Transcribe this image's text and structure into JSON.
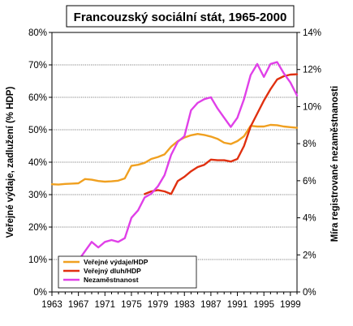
{
  "chart_data": {
    "type": "line",
    "title": "Francouzský sociální stát, 1965-2000",
    "ylabel": "Veřejné výdaje, zadlužení (% HDP)",
    "y2label": "Míra registrované nezaměstnanosti",
    "xlim": [
      1963,
      2000
    ],
    "ylim": [
      0,
      80
    ],
    "y2lim": [
      0,
      14
    ],
    "x_ticks": [
      1963,
      1967,
      1971,
      1975,
      1979,
      1983,
      1987,
      1991,
      1995,
      1999
    ],
    "y_ticks": [
      "0%",
      "10%",
      "20%",
      "30%",
      "40%",
      "50%",
      "60%",
      "70%",
      "80%"
    ],
    "y2_ticks": [
      "0%",
      "2%",
      "4%",
      "6%",
      "8%",
      "10%",
      "12%",
      "14%"
    ],
    "grid": "horizontal",
    "legend_position": "bottom-left",
    "series": [
      {
        "name": "Veřejné výdaje/HDP",
        "axis": "left",
        "color": "#f0a020",
        "x": [
          1963,
          1964,
          1965,
          1966,
          1967,
          1968,
          1969,
          1970,
          1971,
          1972,
          1973,
          1974,
          1975,
          1976,
          1977,
          1978,
          1979,
          1980,
          1981,
          1982,
          1983,
          1984,
          1985,
          1986,
          1987,
          1988,
          1989,
          1990,
          1991,
          1992,
          1993,
          1994,
          1995,
          1996,
          1997,
          1998,
          1999,
          2000
        ],
        "values": [
          33.2,
          33.1,
          33.3,
          33.4,
          33.5,
          34.8,
          34.6,
          34.2,
          34.0,
          34.1,
          34.3,
          35.0,
          38.9,
          39.2,
          39.8,
          41.0,
          41.6,
          42.4,
          44.8,
          46.5,
          47.6,
          48.3,
          48.7,
          48.4,
          47.9,
          47.2,
          46.0,
          45.6,
          46.5,
          48.0,
          51.2,
          51.0,
          51.0,
          51.5,
          51.4,
          51.0,
          50.8,
          50.6
        ]
      },
      {
        "name": "Veřejný dluh/HDP",
        "axis": "left",
        "color": "#e03010",
        "x": [
          1977,
          1978,
          1979,
          1980,
          1981,
          1982,
          1983,
          1984,
          1985,
          1986,
          1987,
          1988,
          1989,
          1990,
          1991,
          1992,
          1993,
          1994,
          1995,
          1996,
          1997,
          1998,
          1999,
          2000
        ],
        "values": [
          30.2,
          31.0,
          31.4,
          31.0,
          30.2,
          34.2,
          35.5,
          37.2,
          38.5,
          39.2,
          40.8,
          40.6,
          40.6,
          40.2,
          41.0,
          45.0,
          51.0,
          55.0,
          59.0,
          62.5,
          65.5,
          66.5,
          67.0,
          67.1
        ]
      },
      {
        "name": "Nezaměstnanost",
        "axis": "right",
        "color": "#e040e8",
        "x": [
          1966,
          1967,
          1968,
          1969,
          1970,
          1971,
          1972,
          1973,
          1974,
          1975,
          1976,
          1977,
          1978,
          1979,
          1980,
          1981,
          1982,
          1983,
          1984,
          1985,
          1986,
          1987,
          1988,
          1989,
          1990,
          1991,
          1992,
          1993,
          1994,
          1995,
          1996,
          1997,
          1998,
          1999,
          2000
        ],
        "values": [
          1.6,
          1.7,
          2.2,
          2.7,
          2.4,
          2.7,
          2.8,
          2.7,
          2.9,
          4.0,
          4.4,
          5.1,
          5.3,
          5.7,
          6.3,
          7.4,
          8.1,
          8.4,
          9.8,
          10.2,
          10.4,
          10.5,
          9.9,
          9.4,
          8.9,
          9.4,
          10.4,
          11.7,
          12.3,
          11.6,
          12.3,
          12.4,
          11.8,
          11.3,
          10.6
        ]
      }
    ]
  }
}
